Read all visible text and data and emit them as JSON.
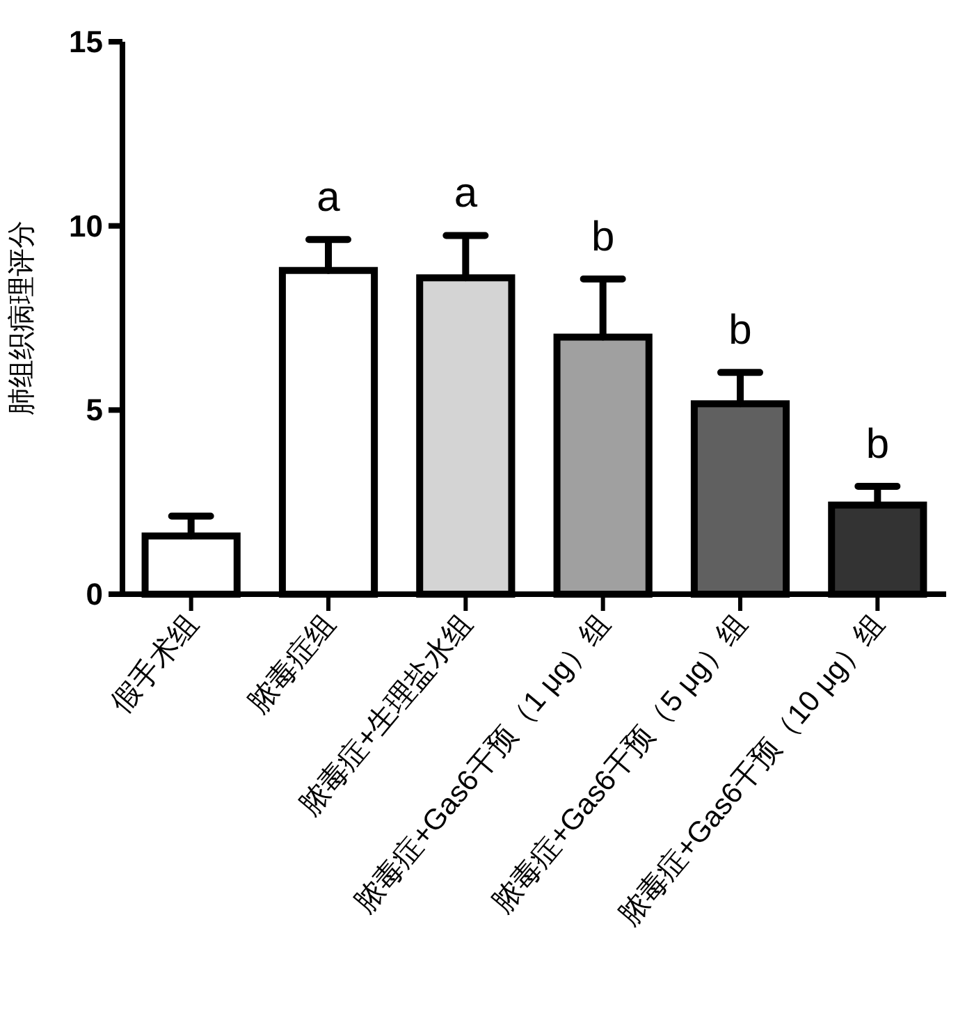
{
  "chart_data": {
    "type": "bar",
    "ylabel": "肺组织病理评分",
    "categories": [
      "假手术组",
      "脓毒症组",
      "脓毒症+生理盐水组",
      "脓毒症+Gas6干预（1 μg）组",
      "脓毒症+Gas6干预（5 μg）组",
      "脓毒症+Gas6干预（10 μg）组"
    ],
    "values": [
      1.58,
      8.79,
      8.59,
      6.98,
      5.17,
      2.42
    ],
    "errors": [
      [
        1.58,
        2.12
      ],
      [
        8.79,
        9.63
      ],
      [
        8.59,
        9.74
      ],
      [
        6.98,
        8.56
      ],
      [
        5.17,
        6.02
      ],
      [
        2.42,
        2.93
      ]
    ],
    "colors": [
      "#ffffff",
      "#ffffff",
      "#d4d4d4",
      "#a0a0a0",
      "#606060",
      "#333333"
    ],
    "ylim": [
      0,
      15
    ],
    "yticks": [
      0,
      5,
      10,
      15
    ],
    "annotations": [
      "a",
      "a",
      "b",
      "b",
      "b"
    ]
  }
}
